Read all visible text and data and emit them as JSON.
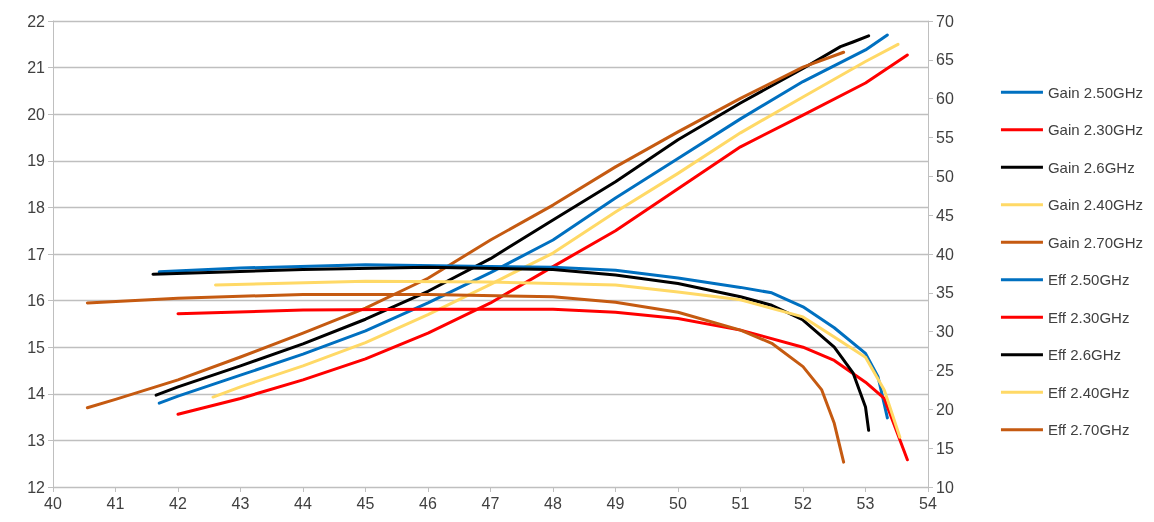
{
  "chart_data": {
    "type": "line",
    "xlim": [
      40,
      54
    ],
    "xticks": [
      40,
      41,
      42,
      43,
      44,
      45,
      46,
      47,
      48,
      49,
      50,
      51,
      52,
      53,
      54
    ],
    "ylim": [
      12,
      22
    ],
    "yticks": [
      12,
      13,
      14,
      15,
      16,
      17,
      18,
      19,
      20,
      21,
      22
    ],
    "y2lim": [
      10,
      70
    ],
    "y2ticks": [
      10,
      15,
      20,
      25,
      30,
      35,
      40,
      45,
      50,
      55,
      60,
      65,
      70
    ],
    "grid": "y",
    "legend": "right",
    "marker": "none",
    "line_style": "solid",
    "series": [
      {
        "name": "Gain 2.50GHz",
        "color": "#0070c0",
        "x": [
          41.7,
          42,
          43,
          44,
          45,
          46,
          47,
          48,
          49,
          50,
          51,
          52,
          53,
          53.35
        ],
        "values": [
          13.8,
          13.95,
          14.4,
          14.85,
          15.35,
          15.95,
          16.6,
          17.3,
          18.2,
          19.05,
          19.9,
          20.7,
          21.38,
          21.7
        ]
      },
      {
        "name": "Gain 2.30GHz",
        "color": "#ff0000",
        "x": [
          42,
          43,
          44,
          45,
          46,
          47,
          48,
          49,
          50,
          51,
          52,
          53,
          53.67
        ],
        "values": [
          13.56,
          13.9,
          14.3,
          14.75,
          15.3,
          15.95,
          16.73,
          17.5,
          18.4,
          19.3,
          19.98,
          20.67,
          21.27
        ]
      },
      {
        "name": "Gain 2.6GHz",
        "color": "#000000",
        "x": [
          41.65,
          42,
          43,
          44,
          45,
          46,
          47,
          48,
          49,
          50,
          51,
          52,
          52.6,
          52.8,
          53.05
        ],
        "values": [
          13.97,
          14.15,
          14.6,
          15.07,
          15.6,
          16.2,
          16.9,
          17.73,
          18.55,
          19.45,
          20.24,
          20.98,
          21.45,
          21.55,
          21.68
        ]
      },
      {
        "name": "Gain 2.40GHz",
        "color": "#ffd966",
        "x": [
          42.56,
          43,
          44,
          45,
          46,
          47,
          48,
          49,
          50,
          51,
          52,
          53,
          53.52
        ],
        "values": [
          13.93,
          14.15,
          14.6,
          15.1,
          15.7,
          16.35,
          17.02,
          17.9,
          18.73,
          19.6,
          20.37,
          21.13,
          21.5
        ]
      },
      {
        "name": "Gain 2.70GHz",
        "color": "#c55a11",
        "x": [
          40.55,
          41,
          42,
          43,
          44,
          45,
          46,
          47,
          48,
          49,
          50,
          51,
          52,
          52.65
        ],
        "values": [
          13.7,
          13.88,
          14.3,
          14.79,
          15.3,
          15.84,
          16.48,
          17.3,
          18.05,
          18.87,
          19.62,
          20.34,
          21.01,
          21.33
        ]
      },
      {
        "name": "Eff 2.50GHz",
        "color": "#0070c0",
        "axis": "y2",
        "x": [
          41.7,
          43,
          45,
          47,
          48,
          49,
          50,
          51,
          51.5,
          52,
          52.5,
          53,
          53.2,
          53.35
        ],
        "values": [
          37.7,
          38.2,
          38.6,
          38.4,
          38.3,
          37.9,
          36.9,
          35.7,
          35.0,
          33.2,
          30.5,
          27.2,
          24.2,
          18.9
        ]
      },
      {
        "name": "Eff 2.30GHz",
        "color": "#ff0000",
        "axis": "y2",
        "x": [
          42,
          44,
          46,
          48,
          49,
          50,
          51,
          52,
          52.5,
          53,
          53.3,
          53.67
        ],
        "values": [
          32.3,
          32.8,
          32.9,
          32.9,
          32.5,
          31.7,
          30.2,
          28.0,
          26.3,
          23.5,
          21.4,
          13.5
        ]
      },
      {
        "name": "Eff 2.6GHz",
        "color": "#000000",
        "axis": "y2",
        "x": [
          41.6,
          44,
          46,
          48,
          49,
          50,
          51,
          51.5,
          52,
          52.5,
          52.8,
          53,
          53.05
        ],
        "values": [
          37.4,
          38.0,
          38.3,
          38.0,
          37.3,
          36.2,
          34.5,
          33.4,
          31.5,
          28.0,
          24.7,
          20.3,
          17.3
        ]
      },
      {
        "name": "Eff 2.40GHz",
        "color": "#ffd966",
        "axis": "y2",
        "x": [
          42.6,
          45,
          47,
          48,
          49,
          50,
          51,
          52,
          52.5,
          53,
          53.3,
          53.55
        ],
        "values": [
          36.0,
          36.5,
          36.4,
          36.2,
          36.0,
          35.1,
          34.1,
          31.9,
          29.3,
          26.7,
          22.5,
          16.4
        ]
      },
      {
        "name": "Eff 2.70GHz",
        "color": "#c55a11",
        "axis": "y2",
        "x": [
          40.55,
          42,
          44,
          46,
          48,
          49,
          50,
          51,
          51.5,
          52,
          52.3,
          52.5,
          52.65
        ],
        "values": [
          33.7,
          34.3,
          34.8,
          34.8,
          34.5,
          33.8,
          32.5,
          30.2,
          28.5,
          25.5,
          22.5,
          18.2,
          13.2
        ]
      }
    ]
  }
}
